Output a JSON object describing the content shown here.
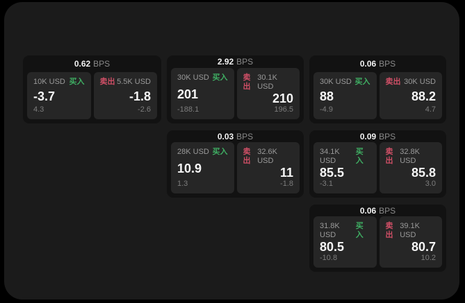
{
  "labels": {
    "bps_unit": "BPS",
    "buy": "买入",
    "sell": "卖出"
  },
  "colors": {
    "page_background": "#000000",
    "surface": "#1b1b1b",
    "card": "#121212",
    "panel": "#262626",
    "buy_accent": "#3fae63",
    "sell_accent": "#cf4f66",
    "text_primary": "#f5f5f5",
    "text_muted": "#8a8a8a"
  },
  "cards": [
    {
      "bps": "0.62",
      "buy": {
        "amount": "10K USD",
        "price": "-3.7",
        "change": "4.3"
      },
      "sell": {
        "amount": "5.5K USD",
        "price": "-1.8",
        "change": "-2.6"
      }
    },
    {
      "bps": "2.92",
      "buy": {
        "amount": "30K USD",
        "price": "201",
        "change": "-188.1"
      },
      "sell": {
        "amount": "30.1K USD",
        "price": "210",
        "change": "196.5"
      }
    },
    {
      "bps": "0.06",
      "buy": {
        "amount": "30K USD",
        "price": "88",
        "change": "-4.9"
      },
      "sell": {
        "amount": "30K USD",
        "price": "88.2",
        "change": "4.7"
      }
    },
    {
      "bps": "0.03",
      "buy": {
        "amount": "28K USD",
        "price": "10.9",
        "change": "1.3"
      },
      "sell": {
        "amount": "32.6K USD",
        "price": "11",
        "change": "-1.8"
      }
    },
    {
      "bps": "0.09",
      "buy": {
        "amount": "34.1K USD",
        "price": "85.5",
        "change": "-3.1"
      },
      "sell": {
        "amount": "32.8K USD",
        "price": "85.8",
        "change": "3.0"
      }
    },
    {
      "bps": "0.06",
      "buy": {
        "amount": "31.8K USD",
        "price": "80.5",
        "change": "-10.8"
      },
      "sell": {
        "amount": "39.1K USD",
        "price": "80.7",
        "change": "10.2"
      }
    }
  ]
}
